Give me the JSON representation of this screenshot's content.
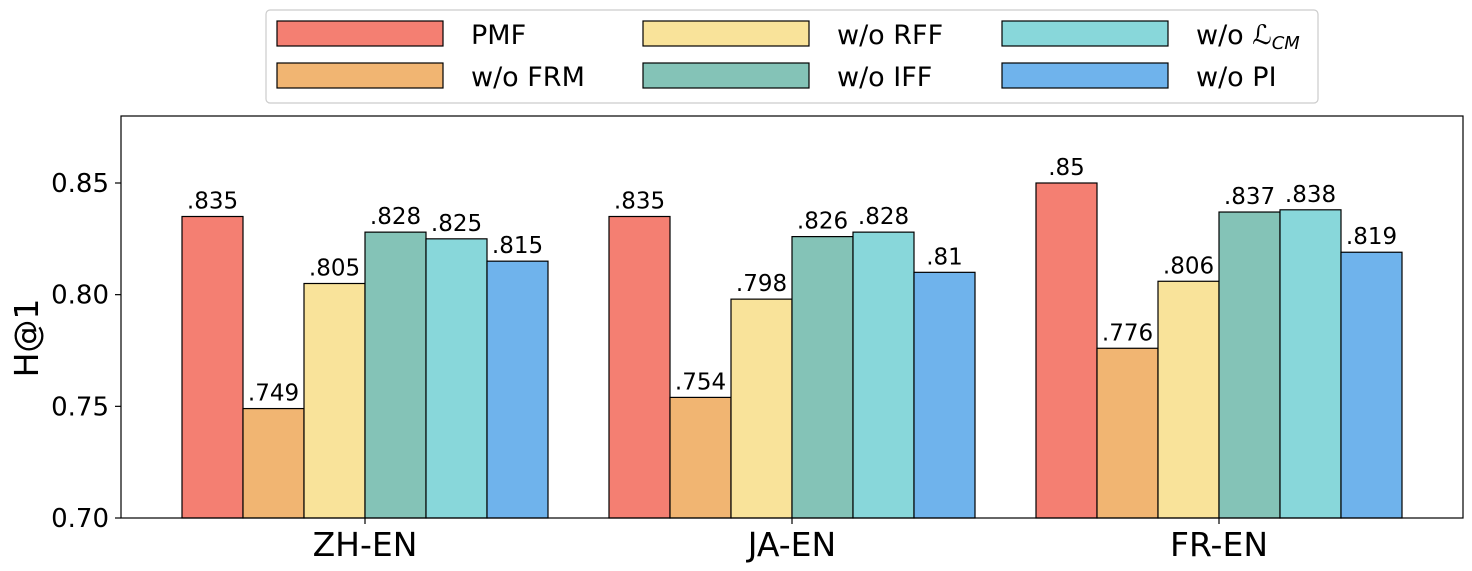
{
  "chart_data": {
    "type": "bar",
    "categories": [
      "ZH-EN",
      "JA-EN",
      "FR-EN"
    ],
    "ylabel": "H@1",
    "xlabel": "",
    "ylim": [
      0.7,
      0.88
    ],
    "yticks": [
      "0.70",
      "0.75",
      "0.80",
      "0.85"
    ],
    "grid": false,
    "legend_position": "top-center",
    "series": [
      {
        "name": "PMF",
        "color": "#F47F72",
        "values": [
          0.835,
          0.835,
          0.85
        ],
        "labels": [
          ".835",
          ".835",
          ".85"
        ]
      },
      {
        "name": "w/o FRM",
        "color": "#F1B572",
        "values": [
          0.749,
          0.754,
          0.776
        ],
        "labels": [
          ".749",
          ".754",
          ".776"
        ]
      },
      {
        "name": "w/o RFF",
        "color": "#F9E39A",
        "values": [
          0.805,
          0.798,
          0.806
        ],
        "labels": [
          ".805",
          ".798",
          ".806"
        ]
      },
      {
        "name": "w/o IFF",
        "color": "#84C3B7",
        "values": [
          0.828,
          0.826,
          0.837
        ],
        "labels": [
          ".828",
          ".826",
          ".837"
        ]
      },
      {
        "name": "w/o ℒCM",
        "color": "#88D7DA",
        "values": [
          0.825,
          0.828,
          0.838
        ],
        "labels": [
          ".825",
          ".828",
          ".838"
        ]
      },
      {
        "name": "w/o PI",
        "color": "#6FB3EC",
        "values": [
          0.815,
          0.81,
          0.819
        ],
        "labels": [
          ".815",
          ".81",
          ".819"
        ]
      }
    ]
  }
}
